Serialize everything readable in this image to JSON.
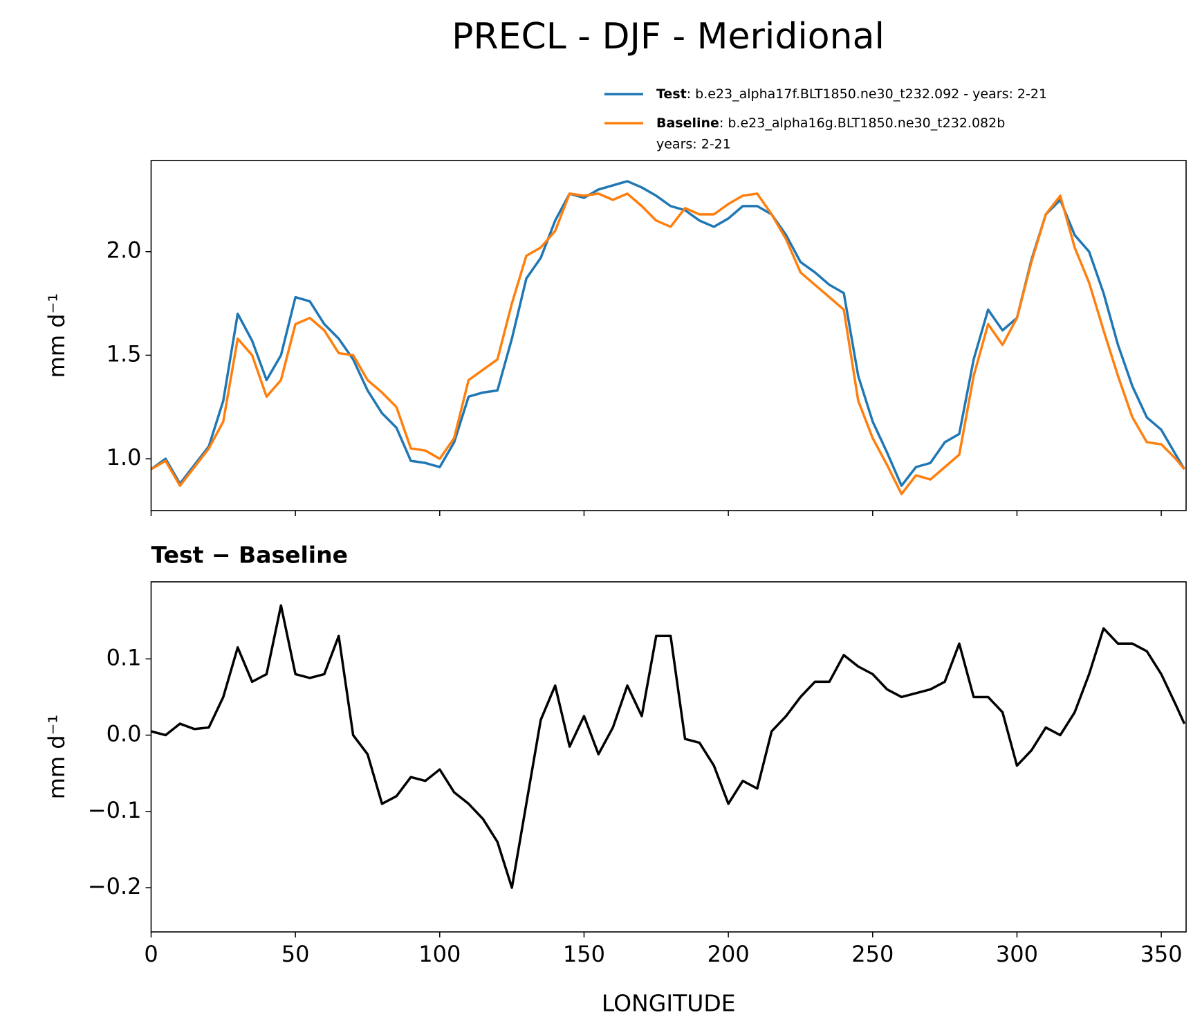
{
  "chart_data": [
    {
      "type": "line",
      "title": "PRECL - DJF - Meridional",
      "ylabel": "mm d⁻¹",
      "x": [
        0,
        5,
        10,
        15,
        20,
        25,
        30,
        35,
        40,
        45,
        50,
        55,
        60,
        65,
        70,
        75,
        80,
        85,
        90,
        95,
        100,
        105,
        110,
        115,
        120,
        125,
        130,
        135,
        140,
        145,
        150,
        155,
        160,
        165,
        170,
        175,
        180,
        185,
        190,
        195,
        200,
        205,
        210,
        215,
        220,
        225,
        230,
        235,
        240,
        245,
        250,
        255,
        260,
        265,
        270,
        275,
        280,
        285,
        290,
        295,
        300,
        305,
        310,
        315,
        320,
        325,
        330,
        335,
        340,
        345,
        350,
        355,
        358
      ],
      "series": [
        {
          "name": "Test",
          "description": [
            ": b.e23_alpha17f.BLT1850.ne30_t232.092 - years: 2-21"
          ],
          "color": "#1f77b4",
          "values": [
            0.95,
            1.0,
            0.88,
            0.97,
            1.06,
            1.28,
            1.7,
            1.57,
            1.38,
            1.5,
            1.78,
            1.76,
            1.65,
            1.58,
            1.48,
            1.33,
            1.22,
            1.15,
            0.99,
            0.98,
            0.96,
            1.08,
            1.3,
            1.32,
            1.33,
            1.58,
            1.87,
            1.97,
            2.15,
            2.28,
            2.26,
            2.3,
            2.32,
            2.34,
            2.31,
            2.27,
            2.22,
            2.2,
            2.15,
            2.12,
            2.16,
            2.22,
            2.22,
            2.18,
            2.08,
            1.95,
            1.9,
            1.84,
            1.8,
            1.4,
            1.18,
            1.03,
            0.87,
            0.96,
            0.98,
            1.08,
            1.12,
            1.48,
            1.72,
            1.62,
            1.68,
            1.96,
            2.18,
            2.25,
            2.08,
            2.0,
            1.8,
            1.55,
            1.35,
            1.2,
            1.14,
            1.02,
            0.95
          ]
        },
        {
          "name": "Baseline",
          "description": [
            ": b.e23_alpha16g.BLT1850.ne30_t232.082b",
            "years: 2-21"
          ],
          "color": "#ff7f0e",
          "values": [
            0.95,
            0.99,
            0.87,
            0.96,
            1.05,
            1.18,
            1.58,
            1.5,
            1.3,
            1.38,
            1.65,
            1.68,
            1.62,
            1.51,
            1.5,
            1.38,
            1.32,
            1.25,
            1.05,
            1.04,
            1.0,
            1.1,
            1.38,
            1.43,
            1.48,
            1.75,
            1.98,
            2.02,
            2.1,
            2.28,
            2.27,
            2.28,
            2.25,
            2.28,
            2.22,
            2.15,
            2.12,
            2.21,
            2.18,
            2.18,
            2.23,
            2.27,
            2.28,
            2.18,
            2.06,
            1.9,
            1.84,
            1.78,
            1.72,
            1.28,
            1.1,
            0.97,
            0.83,
            0.92,
            0.9,
            0.96,
            1.02,
            1.4,
            1.65,
            1.55,
            1.68,
            1.95,
            2.18,
            2.27,
            2.02,
            1.85,
            1.62,
            1.4,
            1.2,
            1.08,
            1.07,
            1.0,
            0.95
          ]
        }
      ],
      "xlim": [
        0,
        358.6
      ],
      "xticks": [
        0,
        50,
        100,
        150,
        200,
        250,
        300,
        350
      ],
      "ylim": [
        0.75,
        2.44
      ],
      "yticks": [
        {
          "value": 1,
          "label": "1.0"
        },
        1.5,
        {
          "value": 2,
          "label": "2.0"
        }
      ]
    },
    {
      "type": "line",
      "title": "Test − Baseline",
      "ylabel": "mm d⁻¹",
      "xlabel": "LONGITUDE",
      "x": [
        0,
        5,
        10,
        15,
        20,
        25,
        30,
        35,
        40,
        45,
        50,
        55,
        60,
        65,
        70,
        75,
        80,
        85,
        90,
        95,
        100,
        105,
        110,
        115,
        120,
        125,
        130,
        135,
        140,
        145,
        150,
        155,
        160,
        165,
        170,
        175,
        180,
        185,
        190,
        195,
        200,
        205,
        210,
        215,
        220,
        225,
        230,
        235,
        240,
        245,
        250,
        255,
        260,
        265,
        270,
        275,
        280,
        285,
        290,
        295,
        300,
        305,
        310,
        315,
        320,
        325,
        330,
        335,
        340,
        345,
        350,
        355,
        358
      ],
      "color": "#000000",
      "values": [
        0.005,
        0.0,
        0.015,
        0.008,
        0.01,
        0.05,
        0.115,
        0.07,
        0.08,
        0.17,
        0.08,
        0.075,
        0.08,
        0.13,
        0.0,
        -0.025,
        -0.09,
        -0.08,
        -0.055,
        -0.06,
        -0.045,
        -0.075,
        -0.09,
        -0.11,
        -0.14,
        -0.2,
        -0.09,
        0.02,
        0.065,
        -0.015,
        0.025,
        -0.025,
        0.01,
        0.065,
        0.025,
        0.13,
        0.13,
        -0.005,
        -0.01,
        -0.04,
        -0.09,
        -0.06,
        -0.07,
        0.005,
        0.025,
        0.05,
        0.07,
        0.07,
        0.105,
        0.09,
        0.08,
        0.06,
        0.05,
        0.055,
        0.06,
        0.07,
        0.12,
        0.05,
        0.05,
        0.03,
        -0.04,
        -0.02,
        0.01,
        0.0,
        0.03,
        0.08,
        0.14,
        0.12,
        0.12,
        0.11,
        0.08,
        0.04,
        0.015
      ],
      "xlim": [
        0,
        358.6
      ],
      "xticks": [
        0,
        50,
        100,
        150,
        200,
        250,
        300,
        350
      ],
      "ylim": [
        -0.258,
        0.201
      ],
      "yticks": [
        {
          "value": -0.2,
          "label": "−0.2"
        },
        {
          "value": -0.1,
          "label": "−0.1"
        },
        {
          "value": 0,
          "label": "0.0"
        },
        0.1
      ]
    }
  ]
}
